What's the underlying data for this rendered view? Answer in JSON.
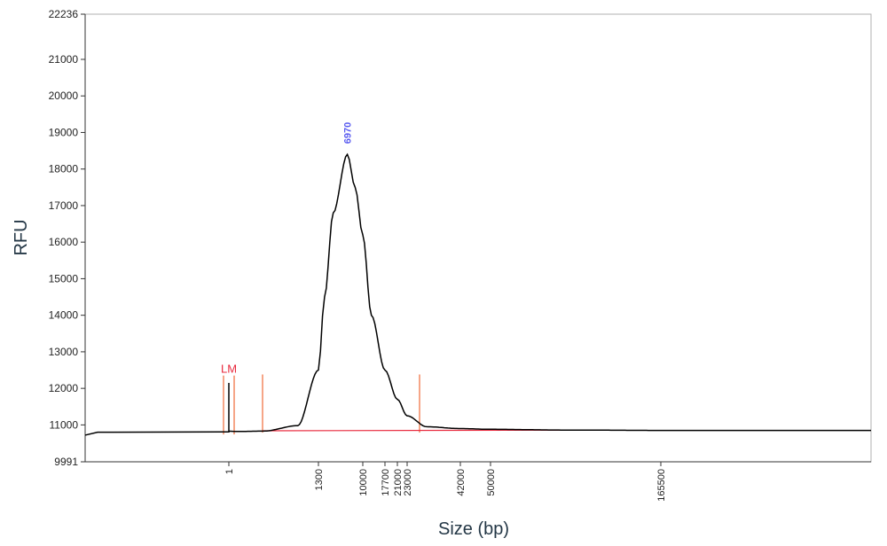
{
  "chart_data": {
    "type": "line",
    "title": "",
    "xlabel": "Size (bp)",
    "ylabel": "RFU",
    "ylim": [
      9991,
      22236
    ],
    "y_ticks": [
      9991,
      11000,
      12000,
      13000,
      14000,
      15000,
      16000,
      17000,
      18000,
      19000,
      20000,
      21000,
      22236
    ],
    "x_ticks": [
      "1",
      "1300",
      "10000",
      "17700",
      "21000",
      "23000",
      "42000",
      "50000",
      "165500"
    ],
    "x_tick_values": [
      1,
      1300,
      10000,
      17700,
      21000,
      23000,
      42000,
      50000,
      165500
    ],
    "peak_label": "6970",
    "marker_label": "LM",
    "series": [
      {
        "values": [
          [
            1,
            10810
          ],
          [
            1.05,
            10830
          ],
          [
            1.1,
            12150
          ],
          [
            1.15,
            10830
          ],
          [
            100,
            10820
          ],
          [
            500,
            10830
          ],
          [
            1000,
            10980
          ],
          [
            1300,
            12500
          ],
          [
            2500,
            14500
          ],
          [
            4200,
            16800
          ],
          [
            6970,
            18400
          ],
          [
            8500,
            17500
          ],
          [
            10000,
            16200
          ],
          [
            13000,
            14000
          ],
          [
            17700,
            12500
          ],
          [
            21000,
            11700
          ],
          [
            23000,
            11250
          ],
          [
            30000,
            10950
          ],
          [
            42000,
            10900
          ],
          [
            50000,
            10880
          ],
          [
            100000,
            10860
          ],
          [
            165500,
            10850
          ],
          [
            300000,
            10850
          ]
        ]
      }
    ],
    "colors": {
      "trace": "#000000",
      "baseline": "#e8283c",
      "region_marker": "#ef6a3a",
      "peak_label": "#5a5cf0"
    }
  }
}
